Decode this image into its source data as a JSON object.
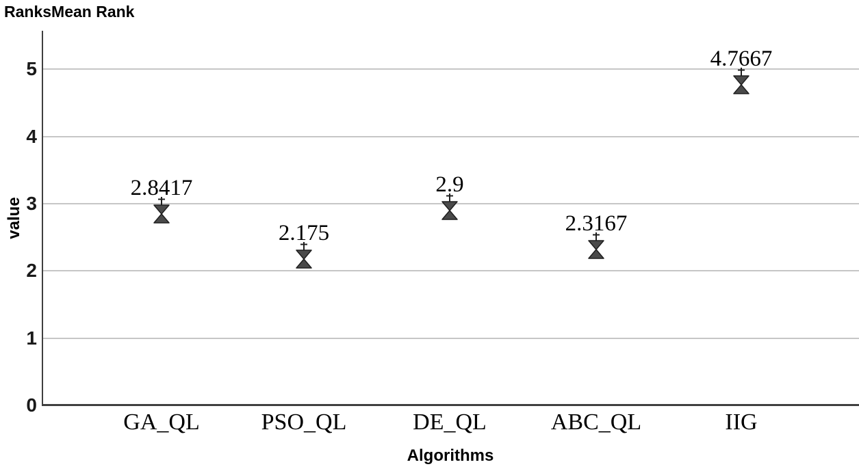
{
  "chart_data": {
    "type": "scatter",
    "title": "RanksMean Rank",
    "xlabel": "Algorithms",
    "ylabel": "value",
    "categories": [
      "GA_QL",
      "PSO_QL",
      "DE_QL",
      "ABC_QL",
      "IIG"
    ],
    "values": [
      2.8417,
      2.175,
      2.9,
      2.3167,
      4.7667
    ],
    "value_labels": [
      "2.8417",
      "2.175",
      "2.9",
      "2.3167",
      "4.7667"
    ],
    "yticks": [
      0,
      1,
      2,
      3,
      4,
      5
    ],
    "ylim": [
      0,
      5.5
    ],
    "grid": "horizontal",
    "legend": "none",
    "marker": "hourglass",
    "colors": {
      "marker_fill": "#4a4a4a",
      "marker_stroke": "#1f1f1f",
      "gridline": "#c6c6c6",
      "axis": "#3f3f3f",
      "text": "#000000"
    }
  }
}
